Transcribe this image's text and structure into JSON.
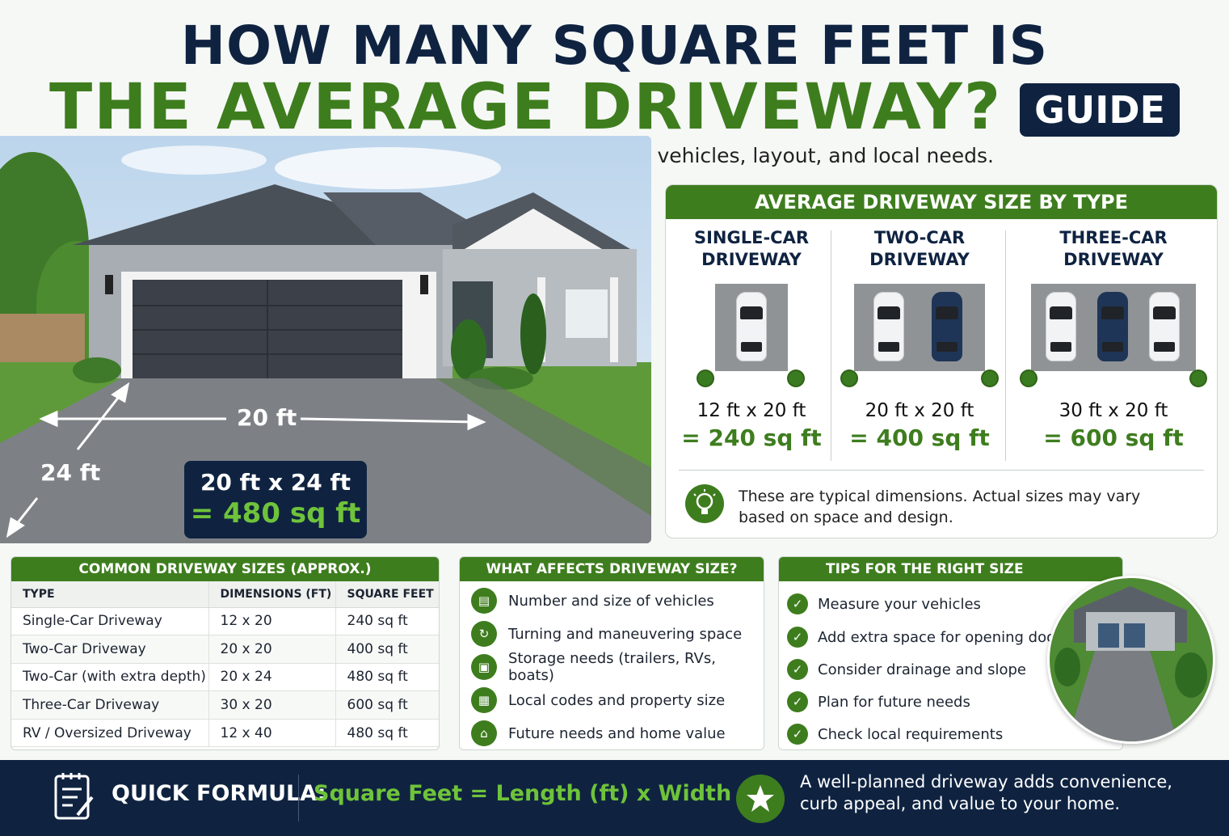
{
  "header": {
    "title_line1": "HOW MANY SQUARE FEET IS",
    "title_line2": "THE AVERAGE DRIVEWAY?",
    "badge": "GUIDE",
    "subtitle": "Driveway size depends on the number of vehicles, layout, and local needs."
  },
  "hero": {
    "width_label": "20 ft",
    "depth_label": "24 ft",
    "dims": "20 ft x 24 ft",
    "area": "= 480 sq ft"
  },
  "type_panel": {
    "title": "AVERAGE DRIVEWAY SIZE BY TYPE",
    "types": [
      {
        "name_l1": "SINGLE-CAR",
        "name_l2": "DRIVEWAY",
        "dims": "12 ft x 20 ft",
        "area": "= 240 sq ft",
        "cars": [
          "white"
        ]
      },
      {
        "name_l1": "TWO-CAR",
        "name_l2": "DRIVEWAY",
        "dims": "20 ft x 20 ft",
        "area": "= 400 sq ft",
        "cars": [
          "white",
          "navy"
        ]
      },
      {
        "name_l1": "THREE-CAR",
        "name_l2": "DRIVEWAY",
        "dims": "30 ft x 20 ft",
        "area": "= 600 sq ft",
        "cars": [
          "white",
          "navy",
          "white"
        ]
      }
    ],
    "note": "These are typical dimensions. Actual sizes may vary based on space and design."
  },
  "sizes_table": {
    "title": "COMMON DRIVEWAY SIZES (APPROX.)",
    "columns": [
      "TYPE",
      "DIMENSIONS (FT)",
      "SQUARE FEET"
    ],
    "rows": [
      [
        "Single-Car Driveway",
        "12 x 20",
        "240 sq ft"
      ],
      [
        "Two-Car Driveway",
        "20 x 20",
        "400 sq ft"
      ],
      [
        "Two-Car (with extra depth)",
        "20 x 24",
        "480 sq ft"
      ],
      [
        "Three-Car Driveway",
        "30 x 20",
        "600 sq ft"
      ],
      [
        "RV / Oversized Driveway",
        "12 x 40",
        "480 sq ft"
      ]
    ]
  },
  "factors": {
    "title": "WHAT AFFECTS DRIVEWAY SIZE?",
    "items": [
      {
        "icon": "car-icon",
        "label": "Number and size of vehicles"
      },
      {
        "icon": "turn-icon",
        "label": "Turning and maneuvering space"
      },
      {
        "icon": "trailer-icon",
        "label": "Storage needs (trailers, RVs, boats)"
      },
      {
        "icon": "building-icon",
        "label": "Local codes and property size"
      },
      {
        "icon": "home-value-icon",
        "label": "Future needs and home value"
      }
    ]
  },
  "tips": {
    "title": "TIPS FOR THE RIGHT SIZE",
    "items": [
      "Measure your vehicles",
      "Add extra space for opening doors",
      "Consider drainage and slope",
      "Plan for future needs",
      "Check local requirements"
    ]
  },
  "footer": {
    "formula_label": "QUICK FORMULA:",
    "formula": "Square Feet = Length (ft) x Width (ft)",
    "note": "A well-planned driveway adds convenience, curb appeal, and value to your home."
  },
  "colors": {
    "navy": "#0f2341",
    "green": "#3e7d1e",
    "light_green": "#6fc33a"
  }
}
